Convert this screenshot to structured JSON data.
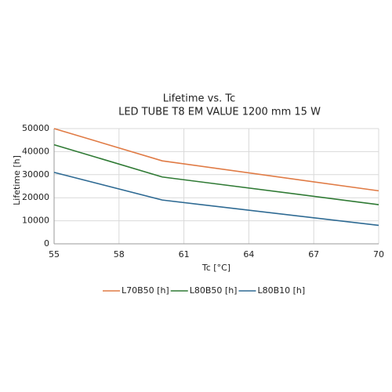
{
  "chart_data": {
    "type": "line",
    "title": "Lifetime vs. Tc",
    "subtitle": "LED TUBE T8 EM VALUE 1200 mm 15 W",
    "x_label": "Tc [°C]",
    "y_label": "Lifetime [h]",
    "x": [
      55,
      60,
      70
    ],
    "series": [
      {
        "name": "L70B50 [h]",
        "color": "#e07b45",
        "values": [
          50000,
          36000,
          23000
        ]
      },
      {
        "name": "L80B50 [h]",
        "color": "#2f7a34",
        "values": [
          43000,
          29000,
          17000
        ]
      },
      {
        "name": "L80B10 [h]",
        "color": "#2e6a93",
        "values": [
          31000,
          19000,
          8000
        ]
      }
    ],
    "xlim": [
      55,
      70
    ],
    "xticks": [
      55,
      58,
      61,
      64,
      67,
      70
    ],
    "ylim": [
      0,
      50000
    ],
    "yticks": [
      0,
      10000,
      20000,
      30000,
      40000,
      50000
    ],
    "grid": true,
    "legend": "bottom"
  }
}
